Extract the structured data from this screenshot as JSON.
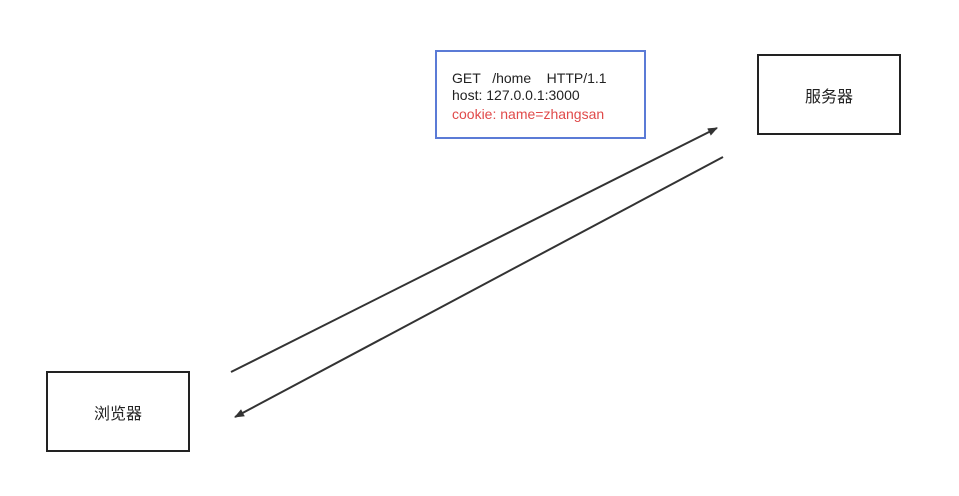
{
  "nodes": {
    "server": {
      "label": "服务器"
    },
    "browser": {
      "label": "浏览器"
    }
  },
  "request": {
    "request_line": "GET   /home    HTTP/1.1",
    "host_header": "host: 127.0.0.1:3000",
    "cookie_header": "cookie: name=zhangsan"
  },
  "colors": {
    "request_border": "#5b7bd6",
    "cookie_text": "#e04a4a",
    "arrow": "#333333",
    "node_border": "#222222"
  }
}
